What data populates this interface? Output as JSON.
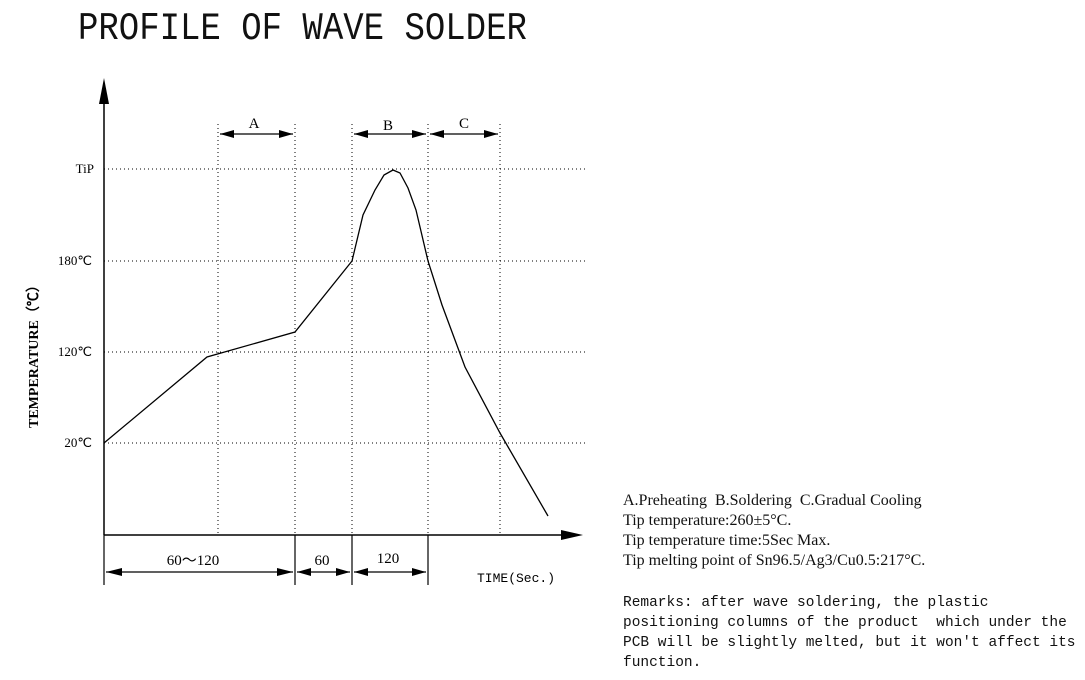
{
  "title": "PROFILE OF WAVE SOLDER",
  "chart_data": {
    "type": "line",
    "ylabel": "TEMPERATURE（℃）",
    "xlabel": "TIME(Sec.)",
    "y_ticks": [
      "TiP",
      "180℃",
      "120℃",
      "20℃"
    ],
    "zones": [
      "A",
      "B",
      "C"
    ],
    "time_intervals": [
      "60～120",
      "60",
      "120"
    ]
  },
  "notes": [
    "A.Preheating  B.Soldering  C.Gradual Cooling",
    "Tip temperature:260±5°C.",
    "Tip temperature time:5Sec Max.",
    "Tip melting point of Sn96.5/Ag3/Cu0.5:217°C."
  ],
  "remarks": [
    "Remarks: after wave soldering, the plastic",
    "positioning columns of the product  which under the",
    "PCB will be slightly melted, but it won't affect its",
    "function."
  ]
}
